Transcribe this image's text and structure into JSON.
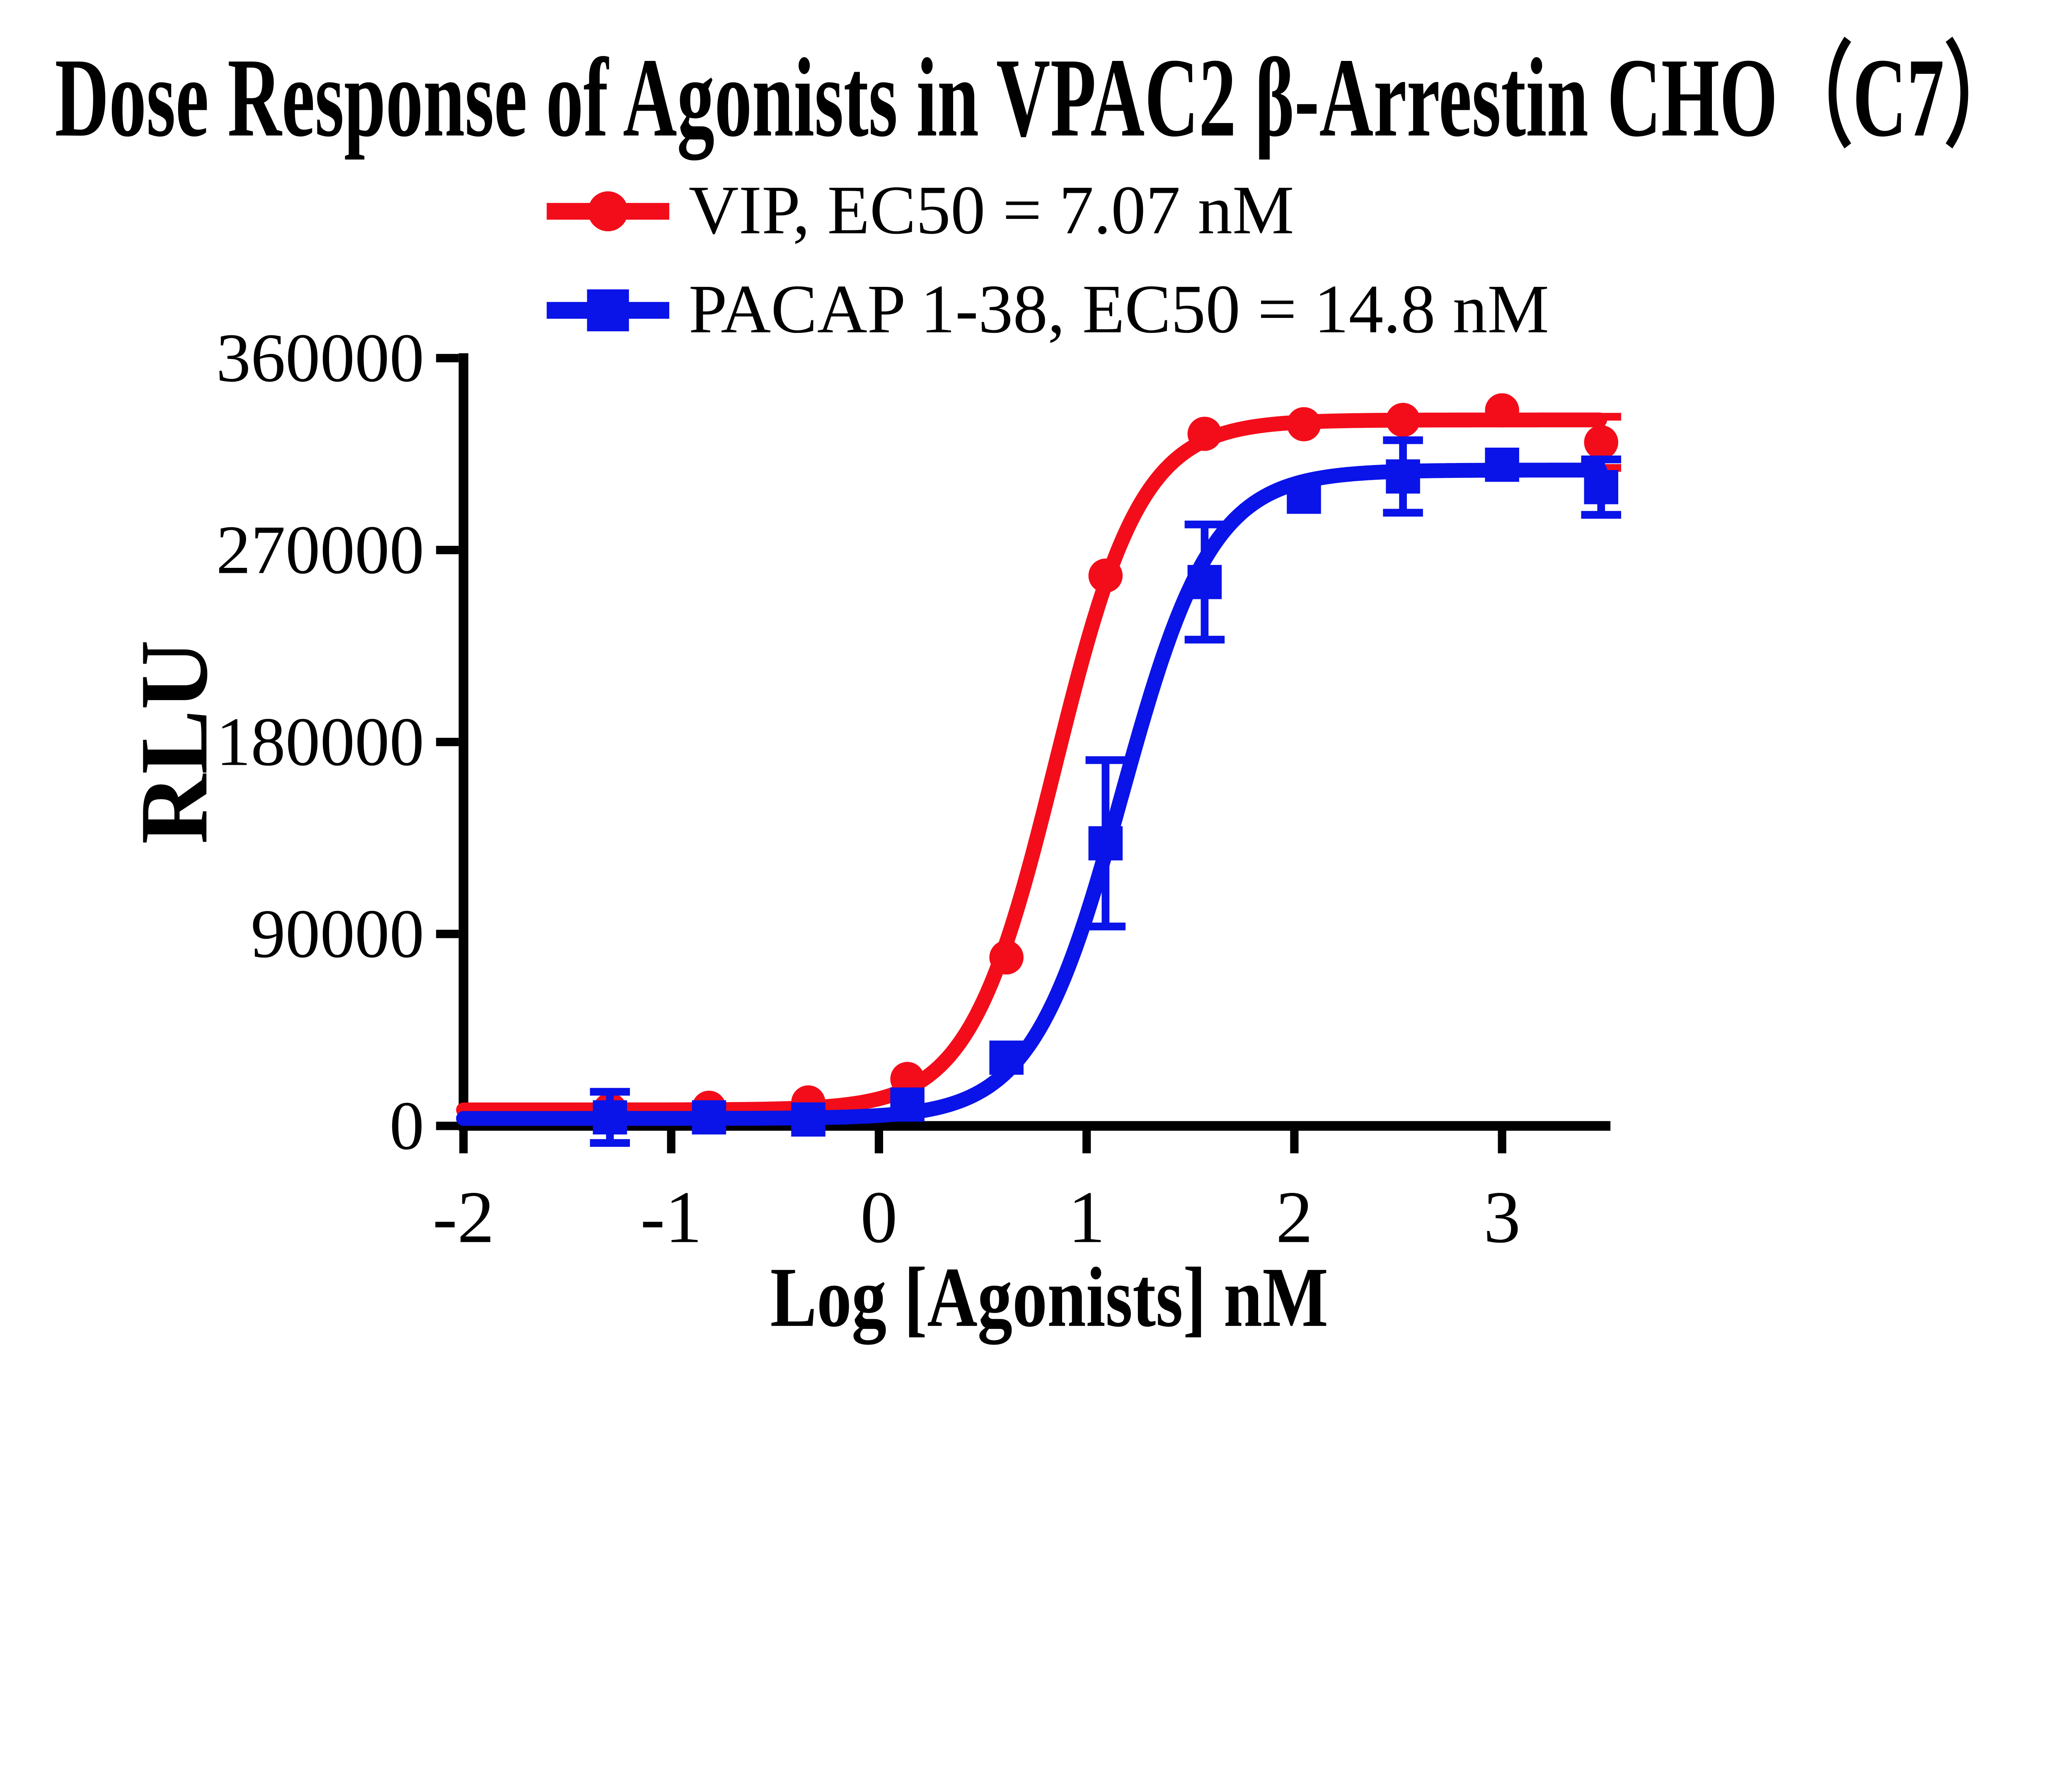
{
  "figure": {
    "background": "#ffffff",
    "axis_color": "#000000",
    "text_color": "#000000"
  },
  "chart_data": {
    "type": "line",
    "title": "Dose Response of Agonists in VPAC2 β-Arrestin CHO（C7）",
    "xlabel": "Log [Agonists] nM",
    "ylabel": "RLU",
    "grid": false,
    "legend_position": "top-center",
    "x_axis": {
      "min": -2,
      "max": 3.52,
      "ticks": [
        -2,
        -1,
        0,
        1,
        2,
        3
      ]
    },
    "y_axis": {
      "min": 0,
      "max": 360000,
      "ticks": [
        0,
        90000,
        180000,
        270000,
        360000
      ]
    },
    "series": [
      {
        "name": "VIP, EC50 = 7.07 nM",
        "color": "#f30d1a",
        "marker": "circle",
        "ec50_nM": 7.07,
        "x": [
          -1.295,
          -0.818,
          -0.34,
          0.137,
          0.614,
          1.091,
          1.568,
          2.046,
          2.523,
          3.0,
          3.477
        ],
        "y": [
          7500,
          8500,
          11000,
          22000,
          79000,
          258000,
          324500,
          329000,
          331000,
          335500,
          320500
        ],
        "yerr": [
          0,
          0,
          0,
          0,
          0,
          0,
          0,
          0,
          0,
          0,
          12000
        ],
        "fit": {
          "bottom": 7500,
          "top": 331000,
          "logEC50": 0.8494,
          "hill": 2.1
        }
      },
      {
        "name": "PACAP 1-38, EC50 = 14.8 nM",
        "color": "#0a13e8",
        "marker": "square",
        "ec50_nM": 14.8,
        "x": [
          -1.295,
          -0.818,
          -0.34,
          0.137,
          0.614,
          1.091,
          1.568,
          2.046,
          2.523,
          3.0,
          3.477
        ],
        "y": [
          4000,
          4000,
          3000,
          10000,
          32000,
          132500,
          255000,
          295000,
          304500,
          310000,
          299500
        ],
        "yerr": [
          12000,
          0,
          0,
          0,
          0,
          39000,
          27000,
          0,
          17000,
          0,
          13000
        ],
        "fit": {
          "bottom": 3500,
          "top": 307500,
          "logEC50": 1.1703,
          "hill": 2.0
        }
      }
    ]
  }
}
